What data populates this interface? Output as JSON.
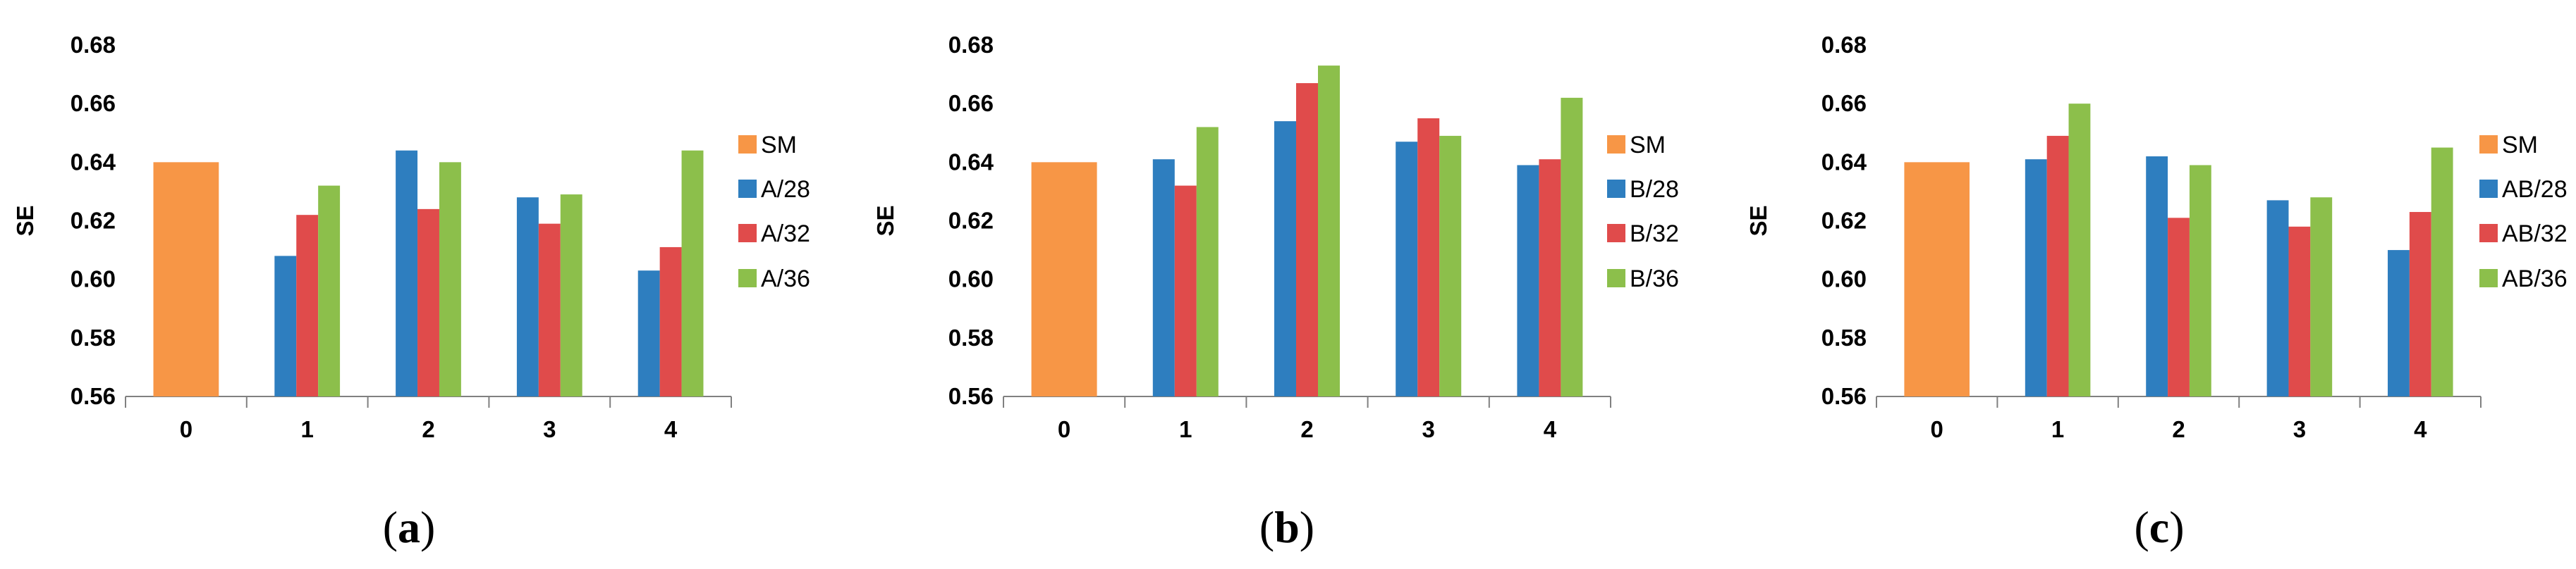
{
  "colors": {
    "SM": "#F79646",
    "s28": "#2E7EBF",
    "s32": "#E04B4B",
    "s36": "#8CBF4B",
    "axis": "#808080"
  },
  "chart_data": [
    {
      "type": "bar",
      "panel_label": "(a)",
      "ylabel": "SE",
      "ylim": [
        0.56,
        0.68
      ],
      "yticks": [
        "0.56",
        "0.58",
        "0.60",
        "0.62",
        "0.64",
        "0.66",
        "0.68"
      ],
      "grid": false,
      "legend_position": "right",
      "categories": [
        "0",
        "1",
        "2",
        "3",
        "4"
      ],
      "series": [
        {
          "name": "SM",
          "color_key": "SM",
          "values": [
            0.64,
            null,
            null,
            null,
            null
          ]
        },
        {
          "name": "A/28",
          "color_key": "s28",
          "values": [
            null,
            0.608,
            0.644,
            0.628,
            0.603
          ]
        },
        {
          "name": "A/32",
          "color_key": "s32",
          "values": [
            null,
            0.622,
            0.624,
            0.619,
            0.611
          ]
        },
        {
          "name": "A/36",
          "color_key": "s36",
          "values": [
            null,
            0.632,
            0.64,
            0.629,
            0.644
          ]
        }
      ]
    },
    {
      "type": "bar",
      "panel_label": "(b)",
      "ylabel": "SE",
      "ylim": [
        0.56,
        0.68
      ],
      "yticks": [
        "0.56",
        "0.58",
        "0.60",
        "0.62",
        "0.64",
        "0.66",
        "0.68"
      ],
      "grid": false,
      "legend_position": "right",
      "categories": [
        "0",
        "1",
        "2",
        "3",
        "4"
      ],
      "series": [
        {
          "name": "SM",
          "color_key": "SM",
          "values": [
            0.64,
            null,
            null,
            null,
            null
          ]
        },
        {
          "name": "B/28",
          "color_key": "s28",
          "values": [
            null,
            0.641,
            0.654,
            0.647,
            0.639
          ]
        },
        {
          "name": "B/32",
          "color_key": "s32",
          "values": [
            null,
            0.632,
            0.667,
            0.655,
            0.641
          ]
        },
        {
          "name": "B/36",
          "color_key": "s36",
          "values": [
            null,
            0.652,
            0.673,
            0.649,
            0.662
          ]
        }
      ]
    },
    {
      "type": "bar",
      "panel_label": "(c)",
      "ylabel": "SE",
      "ylim": [
        0.56,
        0.68
      ],
      "yticks": [
        "0.56",
        "0.58",
        "0.60",
        "0.62",
        "0.64",
        "0.66",
        "0.68"
      ],
      "grid": false,
      "legend_position": "right",
      "categories": [
        "0",
        "1",
        "2",
        "3",
        "4"
      ],
      "series": [
        {
          "name": "SM",
          "color_key": "SM",
          "values": [
            0.64,
            null,
            null,
            null,
            null
          ]
        },
        {
          "name": "AB/28",
          "color_key": "s28",
          "values": [
            null,
            0.641,
            0.642,
            0.627,
            0.61
          ]
        },
        {
          "name": "AB/32",
          "color_key": "s32",
          "values": [
            null,
            0.649,
            0.621,
            0.618,
            0.623
          ]
        },
        {
          "name": "AB/36",
          "color_key": "s36",
          "values": [
            null,
            0.66,
            0.639,
            0.628,
            0.645
          ]
        }
      ]
    }
  ]
}
